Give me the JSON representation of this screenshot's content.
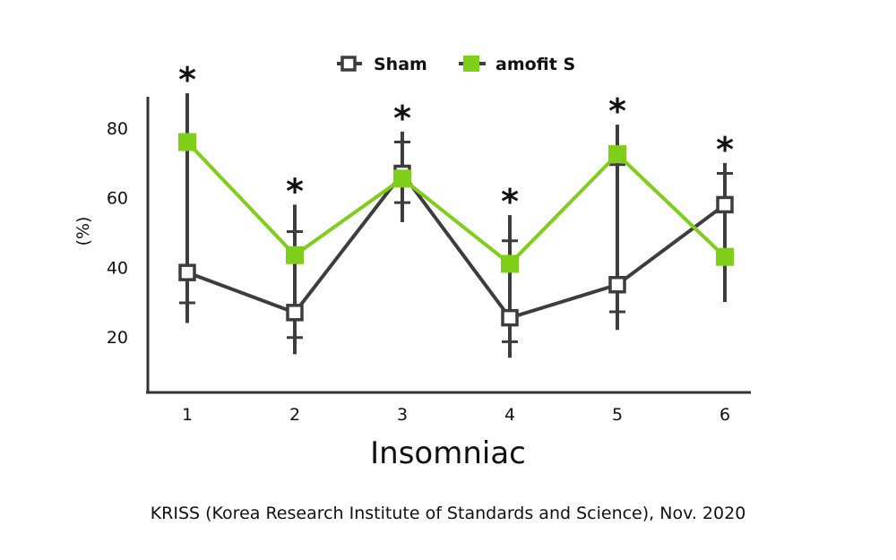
{
  "chart_data": {
    "type": "line",
    "x": [
      1,
      2,
      3,
      4,
      5,
      6
    ],
    "xlabel": "Insomniac",
    "ylabel": "(%)",
    "yticks": [
      20,
      40,
      60,
      80
    ],
    "ylim": [
      5,
      90
    ],
    "grid": false,
    "legend_position": "top",
    "significance_marker": "*",
    "significance_at": [
      1,
      2,
      3,
      4,
      5,
      6
    ],
    "series": [
      {
        "name": "Sham",
        "marker": "open-square",
        "color": "#3d3d3d",
        "values": [
          38.5,
          27,
          67,
          25.5,
          35,
          58
        ],
        "error_low": [
          24,
          15,
          53,
          14,
          22,
          30
        ],
        "error_high": [
          90,
          58,
          79,
          55,
          81,
          70
        ]
      },
      {
        "name": "amofit S",
        "marker": "filled-square",
        "color": "#7fce1a",
        "values": [
          76,
          43.5,
          65.5,
          41,
          72.5,
          43
        ]
      }
    ]
  },
  "source": "KRISS (Korea Research Institute of Standards and Science), Nov. 2020"
}
